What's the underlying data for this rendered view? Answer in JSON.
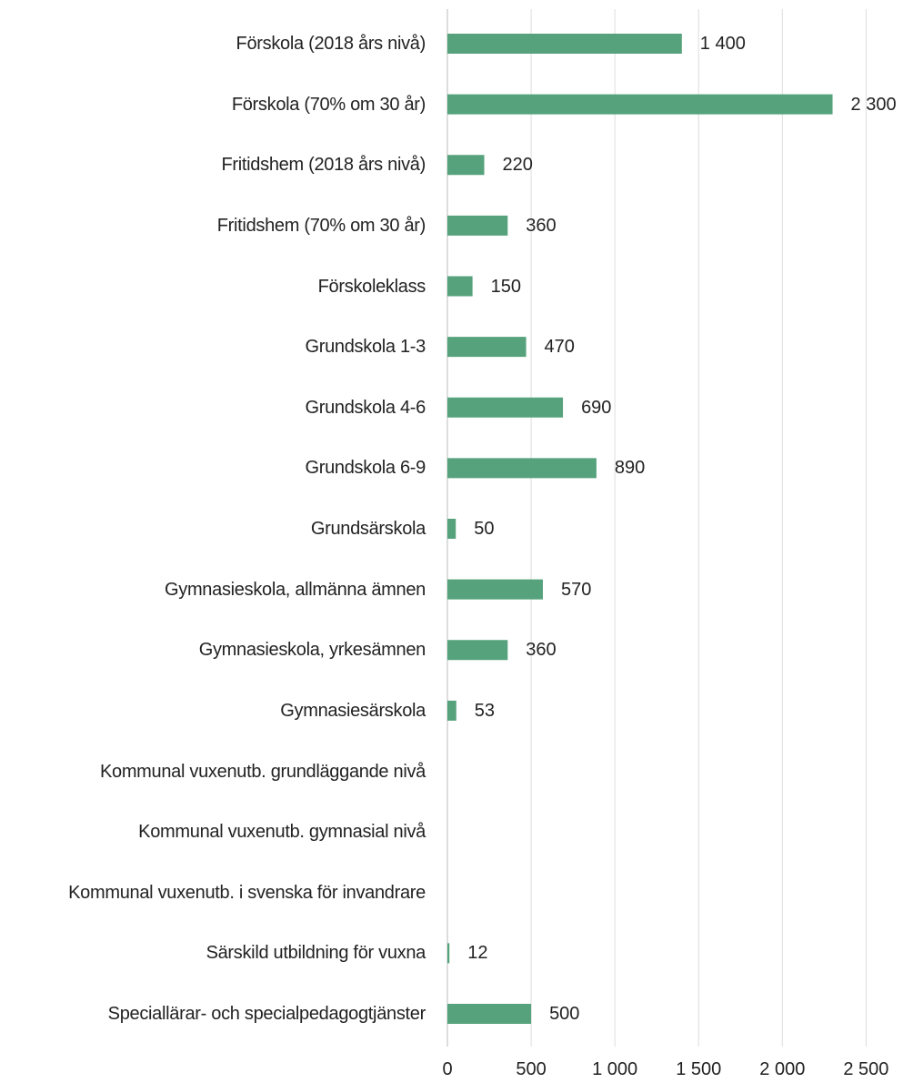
{
  "chart_data": {
    "type": "bar",
    "orientation": "horizontal",
    "categories": [
      "Förskola (2018 års nivå)",
      "Förskola (70% om 30 år)",
      "Fritidshem (2018 års nivå)",
      "Fritidshem (70% om 30 år)",
      "Förskoleklass",
      "Grundskola 1-3",
      "Grundskola 4-6",
      "Grundskola 6-9",
      "Grundsärskola",
      "Gymnasieskola, allmänna ämnen",
      "Gymnasieskola, yrkesämnen",
      "Gymnasiesärskola",
      "Kommunal vuxenutb. grundläggande nivå",
      "Kommunal vuxenutb. gymnasial nivå",
      "Kommunal vuxenutb. i svenska för invandrare",
      "Särskild utbildning för vuxna",
      "Speciallärar- och specialpedagogtjänster"
    ],
    "values": [
      1400,
      2300,
      220,
      360,
      150,
      470,
      690,
      890,
      50,
      570,
      360,
      53,
      null,
      null,
      null,
      12,
      500
    ],
    "value_labels": [
      "1 400",
      "2 300",
      "220",
      "360",
      "150",
      "470",
      "690",
      "890",
      "50",
      "570",
      "360",
      "53",
      null,
      null,
      null,
      "12",
      "500"
    ],
    "color": "#55a27c",
    "xlim": [
      0,
      2650
    ],
    "xticks": [
      0,
      500,
      {
        "value": 1000,
        "label": "1 000"
      },
      {
        "value": 1500,
        "label": "1 500"
      },
      {
        "value": 2000,
        "label": "2 000"
      },
      {
        "value": 2500,
        "label": "2 500"
      }
    ],
    "grid": true
  }
}
